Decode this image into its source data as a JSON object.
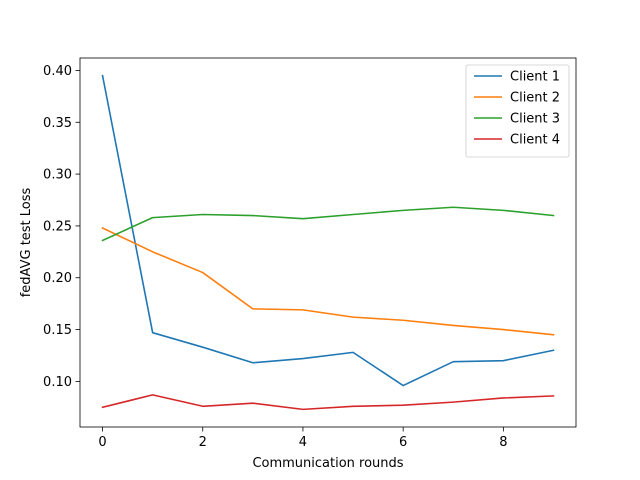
{
  "chart_data": {
    "type": "line",
    "title": "",
    "xlabel": "Communication rounds",
    "ylabel": "fedAVG test Loss",
    "xlim": [
      -0.45,
      9.45
    ],
    "ylim": [
      0.056,
      0.412
    ],
    "xticks": [
      0,
      2,
      4,
      6,
      8
    ],
    "xtick_labels": [
      "0",
      "2",
      "4",
      "6",
      "8"
    ],
    "yticks": [
      0.1,
      0.15,
      0.2,
      0.25,
      0.3,
      0.35,
      0.4
    ],
    "ytick_labels": [
      "0.10",
      "0.15",
      "0.20",
      "0.25",
      "0.30",
      "0.35",
      "0.40"
    ],
    "grid": false,
    "legend_position": "top-right",
    "x": [
      0,
      1,
      2,
      3,
      4,
      5,
      6,
      7,
      8,
      9
    ],
    "series": [
      {
        "name": "Client 1",
        "color": "#1f77b4",
        "values": [
          0.395,
          0.147,
          0.133,
          0.118,
          0.122,
          0.128,
          0.096,
          0.119,
          0.12,
          0.13
        ]
      },
      {
        "name": "Client 2",
        "color": "#ff7f0e",
        "values": [
          0.248,
          0.225,
          0.205,
          0.17,
          0.169,
          0.162,
          0.159,
          0.154,
          0.15,
          0.145
        ]
      },
      {
        "name": "Client 3",
        "color": "#2ca02c",
        "values": [
          0.236,
          0.258,
          0.261,
          0.26,
          0.257,
          0.261,
          0.265,
          0.268,
          0.265,
          0.26
        ]
      },
      {
        "name": "Client 4",
        "color": "#d62728",
        "values": [
          0.075,
          0.087,
          0.076,
          0.079,
          0.073,
          0.076,
          0.077,
          0.08,
          0.084,
          0.086
        ]
      }
    ]
  }
}
